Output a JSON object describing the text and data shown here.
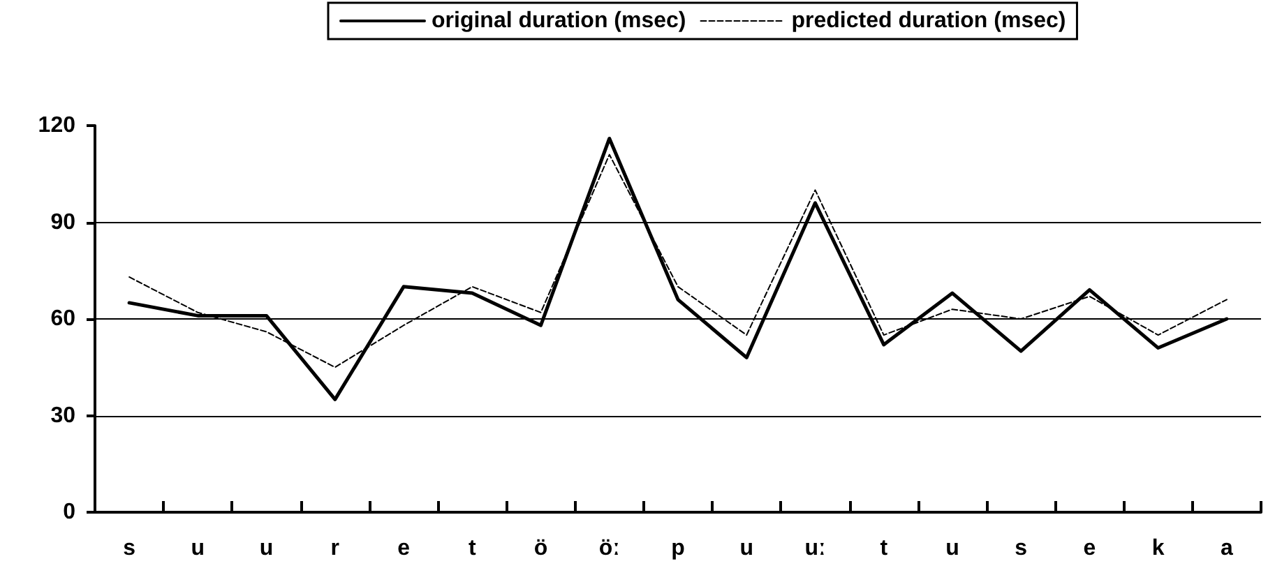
{
  "chart_data": {
    "type": "line",
    "categories": [
      "s",
      "u",
      "u",
      "r",
      "e",
      "t",
      "ö",
      "öː",
      "p",
      "u",
      "uː",
      "t",
      "u",
      "s",
      "e",
      "k",
      "a"
    ],
    "series": [
      {
        "name": "original duration (msec)",
        "color": "#000000",
        "line_style": "solid",
        "values": [
          65,
          61,
          61,
          35,
          70,
          68,
          58,
          116,
          66,
          48,
          96,
          52,
          68,
          50,
          69,
          51,
          60
        ]
      },
      {
        "name": "predicted duration (msec)",
        "color": "#000000",
        "line_style": "dashed",
        "values": [
          73,
          62,
          56,
          45,
          58,
          70,
          62,
          111,
          70,
          55,
          100,
          55,
          63,
          60,
          67,
          55,
          66
        ]
      }
    ],
    "ylim": [
      0,
      120
    ],
    "yticks": [
      0,
      30,
      60,
      90,
      120
    ],
    "grid": "y",
    "legend": "top",
    "marker": "none"
  }
}
